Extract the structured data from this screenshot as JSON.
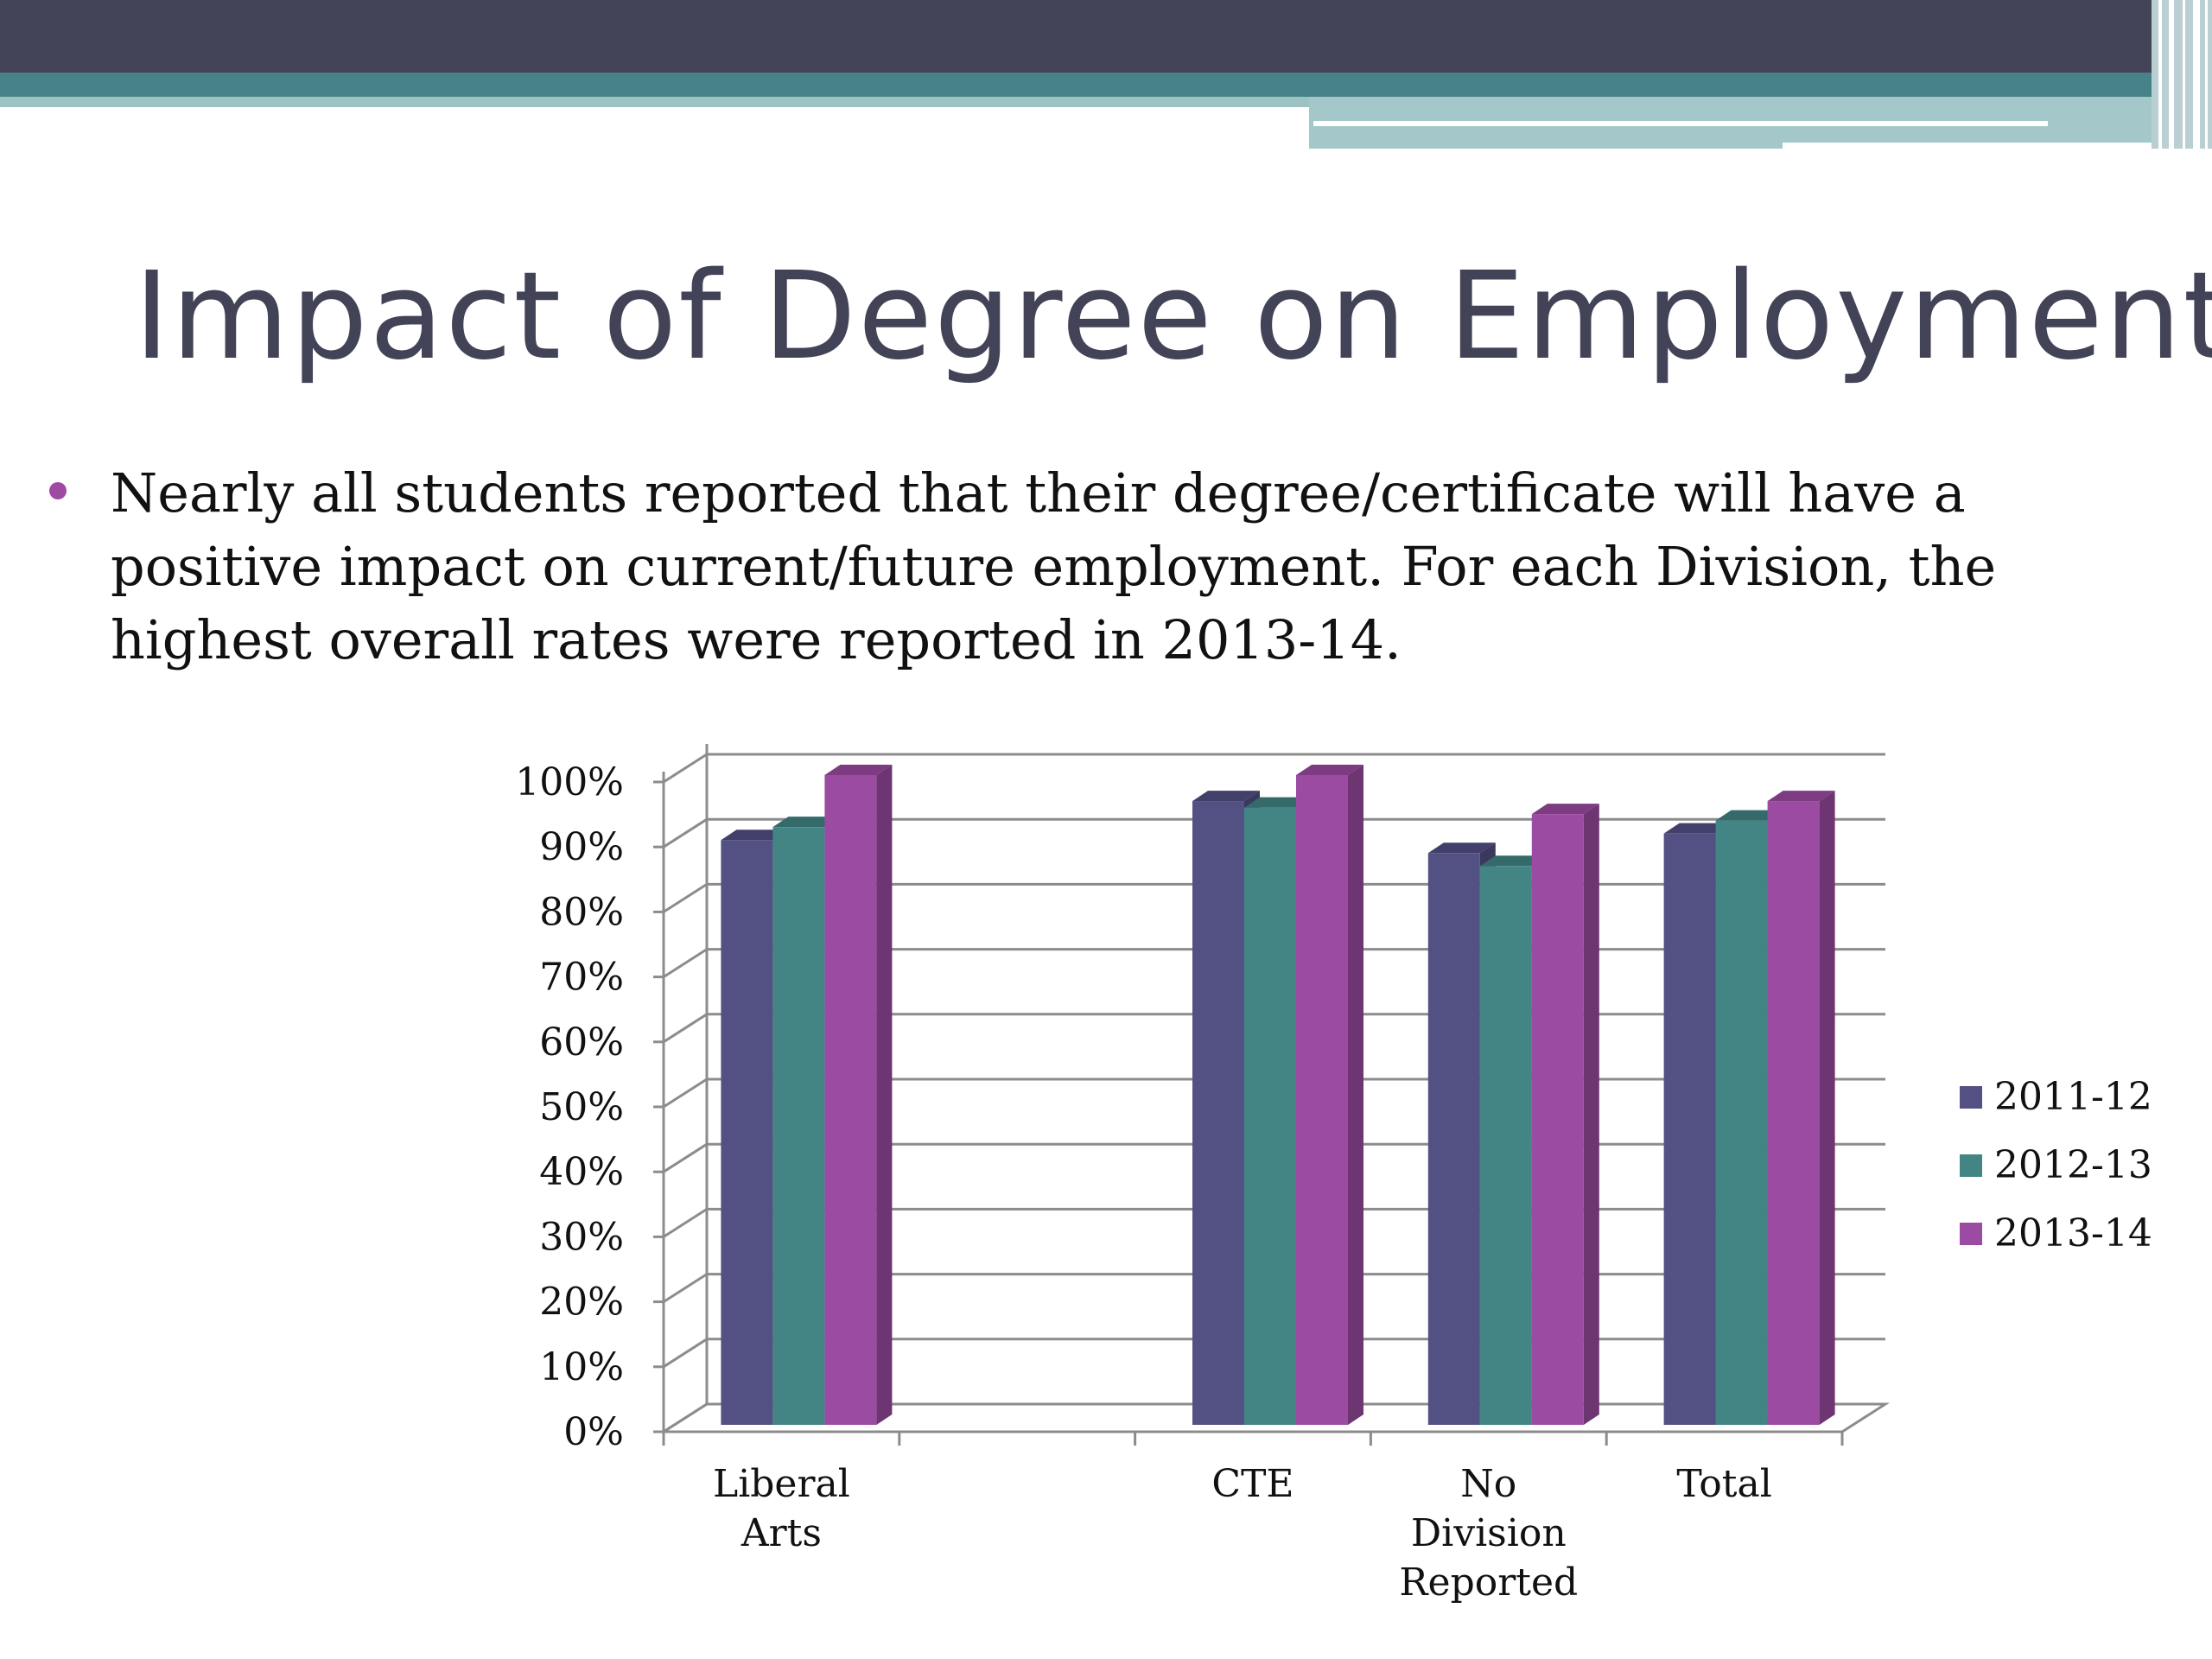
{
  "slide": {
    "title": "Impact of Degree on Employment",
    "bullet": "Nearly all students reported that their degree/certificate will have a positive impact on current/future employment. For each Division, the highest overall rates were reported in 2013-14."
  },
  "colors": {
    "header_dark": "#434358",
    "header_teal": "#468287",
    "bullet": "#9e4aa3"
  },
  "chart_data": {
    "type": "bar",
    "categories": [
      [
        "Liberal",
        "Arts"
      ],
      [
        ""
      ],
      [
        "CTE"
      ],
      [
        "No",
        "Division",
        "Reported"
      ],
      [
        "Total"
      ]
    ],
    "series": [
      {
        "name": "2011-12",
        "color": "#535084",
        "values": [
          90,
          null,
          96,
          88,
          91
        ]
      },
      {
        "name": "2012-13",
        "color": "#428584",
        "values": [
          92,
          null,
          95,
          86,
          93
        ]
      },
      {
        "name": "2013-14",
        "color": "#9c4ba2",
        "values": [
          100,
          null,
          100,
          94,
          96
        ]
      }
    ],
    "yticks": [
      "0%",
      "10%",
      "20%",
      "30%",
      "40%",
      "50%",
      "60%",
      "70%",
      "80%",
      "90%",
      "100%"
    ],
    "ylim": [
      0,
      100
    ],
    "grid": true,
    "legend": "right"
  }
}
